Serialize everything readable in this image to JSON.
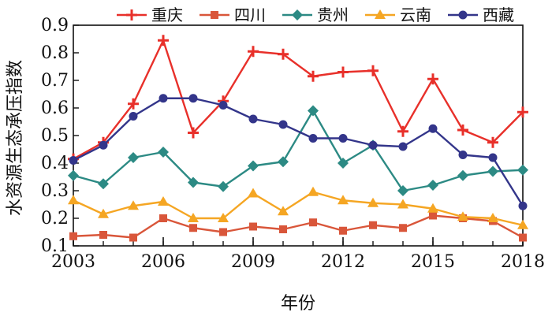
{
  "chart_data": {
    "type": "line",
    "title": "",
    "xlabel": "年份",
    "ylabel": "水资源生态承压指数",
    "xlim": [
      2003,
      2018
    ],
    "ylim": [
      0.1,
      0.9
    ],
    "xticks": [
      "2003",
      "2006",
      "2009",
      "2012",
      "2015",
      "2018"
    ],
    "yticks": [
      "0.1",
      "0.2",
      "0.3",
      "0.4",
      "0.5",
      "0.6",
      "0.7",
      "0.8",
      "0.9"
    ],
    "grid": false,
    "legend_position": "top",
    "x": [
      2003,
      2004,
      2005,
      2006,
      2007,
      2008,
      2009,
      2010,
      2011,
      2012,
      2013,
      2014,
      2015,
      2016,
      2017,
      2018
    ],
    "series": [
      {
        "name": "重庆",
        "color": "#e8302a",
        "marker": "plus",
        "values": [
          0.415,
          0.475,
          0.615,
          0.845,
          0.51,
          0.625,
          0.805,
          0.795,
          0.715,
          0.73,
          0.735,
          0.515,
          0.705,
          0.52,
          0.475,
          0.585
        ]
      },
      {
        "name": "四川",
        "color": "#d9563a",
        "marker": "square",
        "values": [
          0.135,
          0.14,
          0.13,
          0.2,
          0.165,
          0.15,
          0.17,
          0.16,
          0.185,
          0.155,
          0.175,
          0.165,
          0.21,
          0.2,
          0.19,
          0.13
        ]
      },
      {
        "name": "贵州",
        "color": "#2c8a84",
        "marker": "diamond",
        "values": [
          0.355,
          0.325,
          0.42,
          0.44,
          0.33,
          0.315,
          0.39,
          0.405,
          0.59,
          0.4,
          0.465,
          0.3,
          0.32,
          0.355,
          0.37,
          0.375
        ]
      },
      {
        "name": "云南",
        "color": "#f5a623",
        "marker": "triangle",
        "values": [
          0.265,
          0.215,
          0.245,
          0.26,
          0.2,
          0.2,
          0.29,
          0.225,
          0.295,
          0.265,
          0.255,
          0.25,
          0.235,
          0.205,
          0.2,
          0.175
        ]
      },
      {
        "name": "西藏",
        "color": "#33358a",
        "marker": "circle",
        "values": [
          0.41,
          0.465,
          0.57,
          0.635,
          0.635,
          0.61,
          0.56,
          0.54,
          0.49,
          0.49,
          0.465,
          0.46,
          0.525,
          0.43,
          0.42,
          0.245
        ]
      }
    ]
  }
}
